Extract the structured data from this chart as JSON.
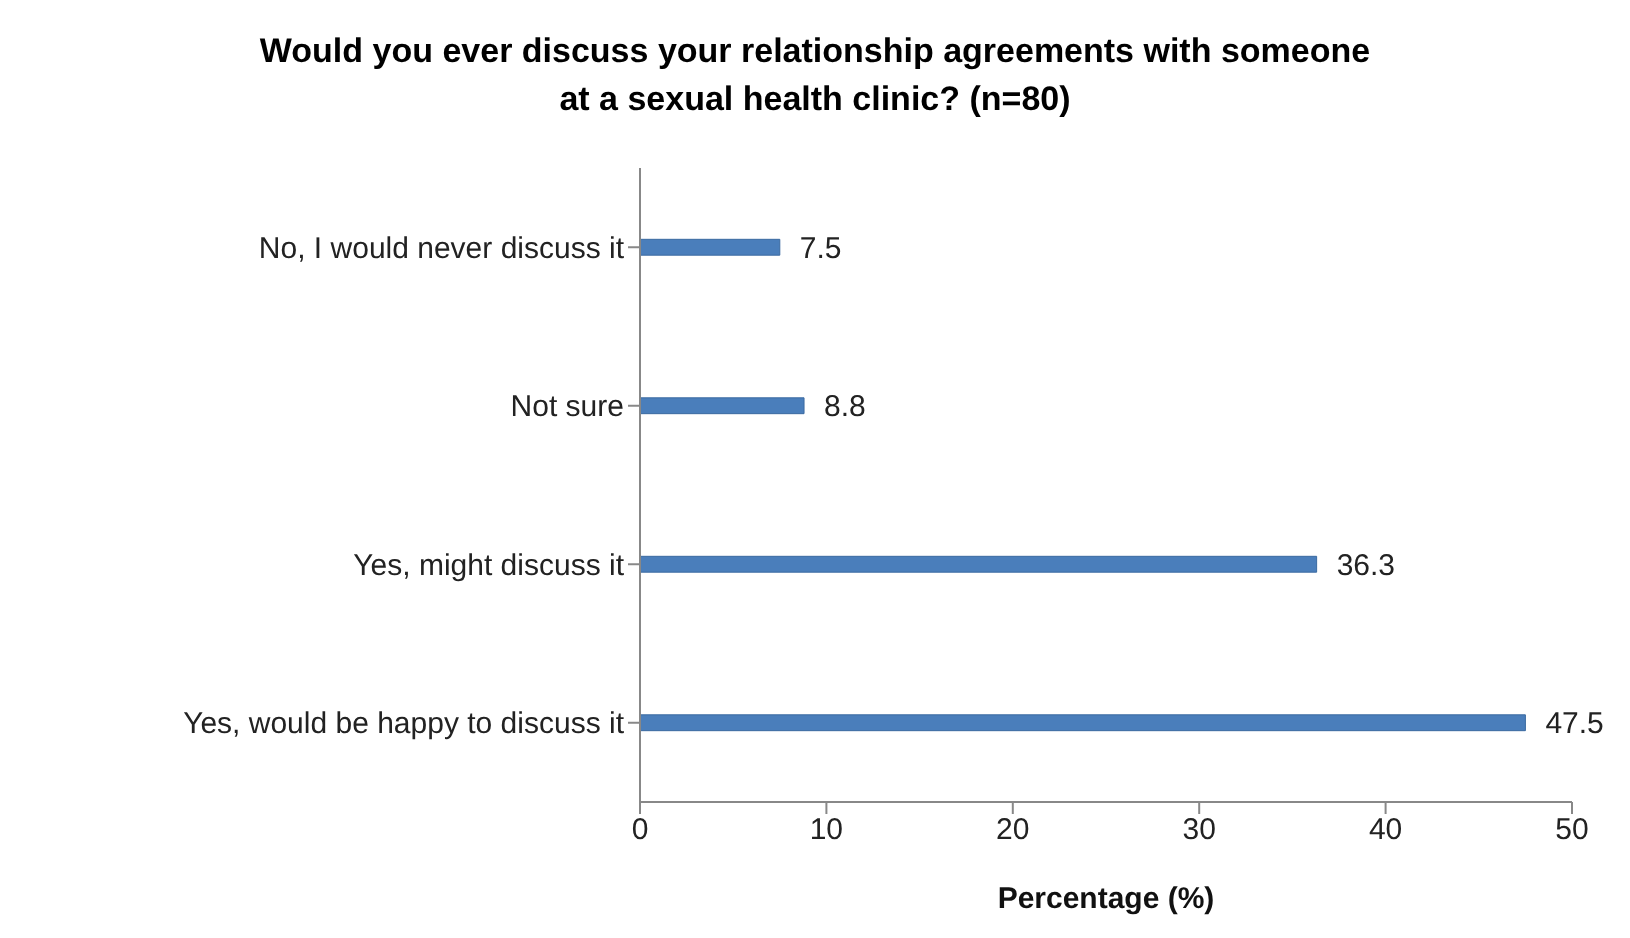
{
  "chart_data": {
    "type": "bar",
    "orientation": "horizontal",
    "title": "Would you ever discuss your relationship agreements with someone at a sexual health clinic? (n=80)",
    "xlabel": "Percentage (%)",
    "categories": [
      "No, I would never discuss it",
      "Not sure",
      "Yes, might discuss it",
      "Yes, would be happy to discuss it"
    ],
    "values": [
      7.5,
      8.8,
      36.3,
      47.5
    ],
    "color": "#4a7ebb",
    "xlim": [
      0,
      50
    ],
    "xticks": [
      0,
      10,
      20,
      30,
      40,
      50
    ],
    "data_labels": true
  }
}
